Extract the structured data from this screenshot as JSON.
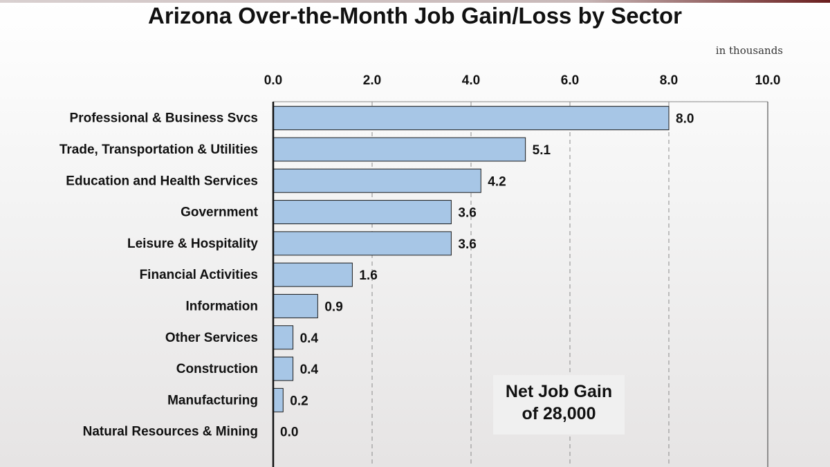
{
  "chart_data": {
    "type": "bar",
    "orientation": "horizontal",
    "title": "Arizona Over-the-Month Job Gain/Loss by Sector",
    "units_note": "in thousands",
    "categories": [
      "Professional & Business Svcs",
      "Trade, Transportation & Utilities",
      "Education and Health Services",
      "Government",
      "Leisure & Hospitality",
      "Financial Activities",
      "Information",
      "Other Services",
      "Construction",
      "Manufacturing",
      "Natural Resources & Mining"
    ],
    "values": [
      8.0,
      5.1,
      4.2,
      3.6,
      3.6,
      1.6,
      0.9,
      0.4,
      0.4,
      0.2,
      0.0
    ],
    "value_labels": [
      "8.0",
      "5.1",
      "4.2",
      "3.6",
      "3.6",
      "1.6",
      "0.9",
      "0.4",
      "0.4",
      "0.2",
      "0.0"
    ],
    "xlim": [
      0,
      10
    ],
    "x_ticks": [
      "0.0",
      "2.0",
      "4.0",
      "6.0",
      "8.0",
      "10.0"
    ],
    "x_axis_position": "top",
    "grid": "vertical dashed",
    "bar_color": "#a7c6e6",
    "bar_edge_color": "#1a1a1a"
  },
  "annotation": {
    "line1": "Net Job Gain",
    "line2": "of 28,000"
  }
}
